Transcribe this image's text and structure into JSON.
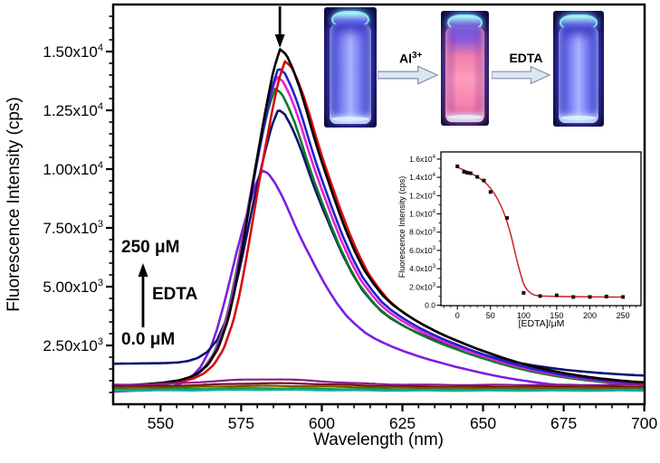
{
  "figure": {
    "kind": "fluorescence-titration-figure",
    "annotations": {
      "conc_high": "250 μM",
      "reagent": "EDTA",
      "conc_low": "0.0 μM"
    },
    "photo_sequence": {
      "arrow1_label_base": "Al",
      "arrow1_label_sup": "3+",
      "arrow2_label": "EDTA",
      "vials": [
        {
          "name": "probe-vial",
          "glow": "blue"
        },
        {
          "name": "probe-plus-al-vial",
          "glow": "pink"
        },
        {
          "name": "probe-al-plus-edta-vial",
          "glow": "blue"
        }
      ]
    }
  },
  "chart_data": [
    {
      "id": "main",
      "type": "line",
      "title": "",
      "xlabel": "Wavelength (nm)",
      "ylabel": "Fluorescence Intensity (cps)",
      "xlim": [
        535.3,
        700.1
      ],
      "ylim": [
        0,
        17000
      ],
      "grid": false,
      "x_ticks": [
        550,
        575,
        600,
        625,
        650,
        675,
        700
      ],
      "x_minor_step": 5,
      "y_ticks": [
        {
          "value": 2500,
          "m": "2.50x10",
          "e": "3"
        },
        {
          "value": 5000,
          "m": "5.00x10",
          "e": "3"
        },
        {
          "value": 7500,
          "m": "7.50x10",
          "e": "3"
        },
        {
          "value": 10000,
          "m": "1.00x10",
          "e": "4"
        },
        {
          "value": 12500,
          "m": "1.25x10",
          "e": "4"
        },
        {
          "value": 15000,
          "m": "1.50x10",
          "e": "4"
        }
      ],
      "y_minor_step": 500,
      "peak_arrow_nm": 587,
      "peak_intensity": 15100,
      "shape_wavelengths": [
        535,
        540,
        545,
        550,
        555,
        558,
        561,
        564,
        567,
        570,
        572,
        574,
        576,
        578,
        580,
        582,
        584,
        586,
        588,
        590,
        592,
        594,
        596,
        598,
        600,
        603,
        606,
        609,
        612,
        615,
        618,
        621,
        624,
        627,
        630,
        634,
        638,
        642,
        646,
        650,
        655,
        660,
        665,
        670,
        675,
        680,
        685,
        690,
        695,
        700
      ],
      "shape_values": [
        0.052,
        0.054,
        0.057,
        0.061,
        0.068,
        0.076,
        0.09,
        0.115,
        0.16,
        0.24,
        0.32,
        0.42,
        0.53,
        0.645,
        0.75,
        0.85,
        0.94,
        1.0,
        0.985,
        0.945,
        0.895,
        0.835,
        0.77,
        0.71,
        0.655,
        0.575,
        0.5,
        0.435,
        0.38,
        0.34,
        0.305,
        0.28,
        0.26,
        0.242,
        0.226,
        0.207,
        0.19,
        0.175,
        0.16,
        0.147,
        0.131,
        0.117,
        0.105,
        0.095,
        0.086,
        0.079,
        0.073,
        0.068,
        0.064,
        0.061
      ],
      "series": [
        {
          "name": "spectrum-1",
          "color": "#000000",
          "scale": 1.0,
          "shift": 1.0,
          "pedestal": 0
        },
        {
          "name": "spectrum-2",
          "color": "#d40f0f",
          "scale": 0.966,
          "shift": 2.5,
          "pedestal": 0
        },
        {
          "name": "spectrum-3",
          "color": "#2222cc",
          "scale": 0.947,
          "shift": 0.5,
          "pedestal": 0
        },
        {
          "name": "spectrum-4",
          "color": "#e822d6",
          "scale": 0.923,
          "shift": 0.0,
          "pedestal": 0
        },
        {
          "name": "spectrum-5",
          "color": "#0f7a28",
          "scale": 0.889,
          "shift": -0.5,
          "pedestal": 0
        },
        {
          "name": "spectrum-6",
          "color": "#0d1270",
          "scale": 0.795,
          "shift": 0.5,
          "pedestal": 1150
        },
        {
          "name": "spectrum-7",
          "color": "#7c1fe0",
          "scale": 0.659,
          "shift": -4.5,
          "pedestal": 0
        }
      ],
      "flat_series": [
        {
          "name": "spectrum-8",
          "color": "#8a1c8a",
          "base": 820,
          "bump": 240,
          "center": 583,
          "sigma": 18
        },
        {
          "name": "spectrum-9",
          "color": "#7a1010",
          "base": 740,
          "bump": 150,
          "center": 585,
          "sigma": 20
        },
        {
          "name": "spectrum-10",
          "color": "#6e5800",
          "base": 690,
          "bump": 90,
          "center": 584,
          "sigma": 20
        },
        {
          "name": "spectrum-11",
          "color": "#18953e",
          "base": 620,
          "bump": 60,
          "center": 583,
          "sigma": 18
        },
        {
          "name": "spectrum-12",
          "color": "#16ada0",
          "base": 575,
          "bump": 35,
          "center": 583,
          "sigma": 18
        }
      ]
    },
    {
      "id": "inset",
      "type": "scatter",
      "xlabel": "[EDTA]/μM",
      "ylabel": "Fluorescence Intensity (cps)",
      "xlim": [
        -25,
        278
      ],
      "ylim": [
        0,
        16700
      ],
      "x_ticks": [
        0,
        50,
        100,
        150,
        200,
        250
      ],
      "x_minor_step": 10,
      "y_ticks": [
        {
          "value": 0,
          "m": "0.0",
          "e": ""
        },
        {
          "value": 2000,
          "m": "2.0x10",
          "e": "3"
        },
        {
          "value": 4000,
          "m": "4.0x10",
          "e": "3"
        },
        {
          "value": 6000,
          "m": "6.0x10",
          "e": "3"
        },
        {
          "value": 8000,
          "m": "8.0x10",
          "e": "3"
        },
        {
          "value": 10000,
          "m": "1.0x10",
          "e": "4"
        },
        {
          "value": 12000,
          "m": "1.2x10",
          "e": "4"
        },
        {
          "value": 14000,
          "m": "1.4x10",
          "e": "4"
        },
        {
          "value": 16000,
          "m": "1.6x10",
          "e": "4"
        }
      ],
      "y_minor_step": 1000,
      "marker_color": "#111111",
      "fit_color": "#cc2222",
      "points": [
        [
          0,
          15200
        ],
        [
          10,
          14600
        ],
        [
          15,
          14500
        ],
        [
          20,
          14450
        ],
        [
          30,
          14050
        ],
        [
          40,
          13650
        ],
        [
          50,
          12400
        ],
        [
          75,
          9550
        ],
        [
          100,
          1350
        ],
        [
          125,
          1000
        ],
        [
          150,
          1080
        ],
        [
          175,
          900
        ],
        [
          200,
          900
        ],
        [
          225,
          950
        ],
        [
          250,
          900
        ]
      ],
      "fit_curve": [
        [
          -2,
          15150
        ],
        [
          10,
          14800
        ],
        [
          20,
          14450
        ],
        [
          30,
          14050
        ],
        [
          40,
          13550
        ],
        [
          50,
          12800
        ],
        [
          60,
          11700
        ],
        [
          70,
          10150
        ],
        [
          80,
          7900
        ],
        [
          90,
          4900
        ],
        [
          100,
          2350
        ],
        [
          108,
          1500
        ],
        [
          115,
          1150
        ],
        [
          125,
          1020
        ],
        [
          140,
          980
        ],
        [
          160,
          950
        ],
        [
          180,
          930
        ],
        [
          200,
          915
        ],
        [
          225,
          900
        ],
        [
          250,
          890
        ]
      ]
    }
  ]
}
